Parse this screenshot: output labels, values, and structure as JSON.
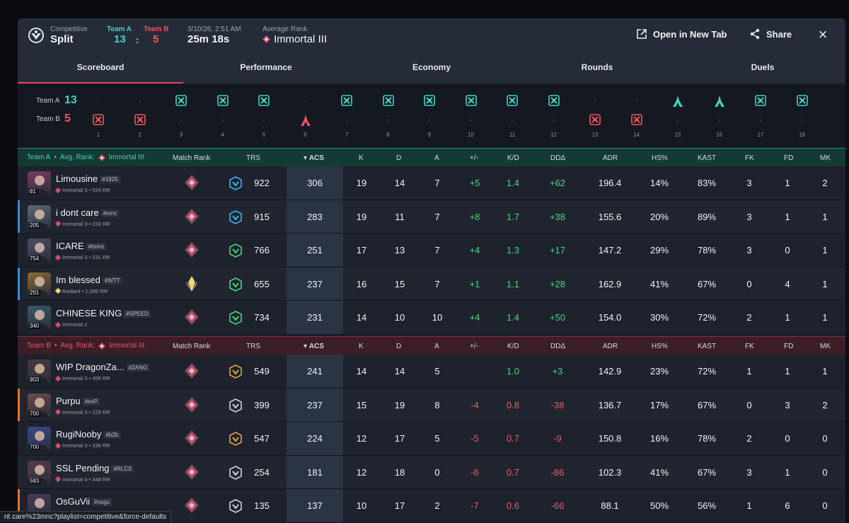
{
  "header": {
    "mode": "Competitive",
    "map": "Split",
    "team_a_label": "Team A",
    "team_b_label": "Team B",
    "score_a": "13",
    "score_sep": ":",
    "score_b": "5",
    "date": "3/10/26, 2:51 AM",
    "duration": "25m 18s",
    "avg_rank_label": "Average Rank",
    "avg_rank_value": "Immortal III",
    "open_new_tab": "Open in New Tab",
    "share": "Share"
  },
  "tabs": [
    "Scoreboard",
    "Performance",
    "Economy",
    "Rounds",
    "Duels"
  ],
  "timeline": {
    "team_a_label": "Team A",
    "team_b_label": "Team B",
    "team_a_score": "13",
    "team_b_score": "5",
    "rounds": [
      {
        "n": "1",
        "w": "B",
        "t": "elim"
      },
      {
        "n": "2",
        "w": "B",
        "t": "elim"
      },
      {
        "n": "3",
        "w": "A",
        "t": "elim"
      },
      {
        "n": "4",
        "w": "A",
        "t": "elim"
      },
      {
        "n": "5",
        "w": "A",
        "t": "elim"
      },
      {
        "n": "6",
        "w": "B",
        "t": "spike"
      },
      {
        "n": "7",
        "w": "A",
        "t": "elim"
      },
      {
        "n": "8",
        "w": "A",
        "t": "elim"
      },
      {
        "n": "9",
        "w": "A",
        "t": "elim"
      },
      {
        "n": "10",
        "w": "A",
        "t": "elim"
      },
      {
        "n": "11",
        "w": "A",
        "t": "elim"
      },
      {
        "n": "12",
        "w": "A",
        "t": "elim"
      },
      {
        "n": "13",
        "w": "B",
        "t": "elim"
      },
      {
        "n": "14",
        "w": "B",
        "t": "elim"
      },
      {
        "n": "15",
        "w": "A",
        "t": "spike"
      },
      {
        "n": "16",
        "w": "A",
        "t": "spike"
      },
      {
        "n": "17",
        "w": "A",
        "t": "elim"
      },
      {
        "n": "18",
        "w": "A",
        "t": "elim"
      }
    ]
  },
  "columns": {
    "match_rank": "Match Rank",
    "trs": "TRS",
    "acs": "ACS",
    "k": "K",
    "d": "D",
    "a": "A",
    "pm": "+/-",
    "kd": "K/D",
    "dda": "DDΔ",
    "adr": "ADR",
    "hs": "HS%",
    "kast": "KAST",
    "fk": "FK",
    "fd": "FD",
    "mk": "MK"
  },
  "team_a": {
    "label": "Team A",
    "avg_label": "Avg. Rank:",
    "avg_rank": "Immortal III",
    "players": [
      {
        "name": "Limousine",
        "tag": "#1925",
        "level": "61",
        "rank_line": "Immortal 3 • 524 RR",
        "trs": "922",
        "acs": "306",
        "k": "19",
        "d": "14",
        "a": "7",
        "pm": "+5",
        "kd": "1.4",
        "dda": "+62",
        "adr": "196.4",
        "hs": "14%",
        "kast": "83%",
        "fk": "3",
        "fd": "1",
        "mk": "2",
        "accent": ""
      },
      {
        "name": "i dont care",
        "tag": "#mnc",
        "level": "205",
        "rank_line": "Immortal 3 • 233 RR",
        "trs": "915",
        "acs": "283",
        "k": "19",
        "d": "11",
        "a": "7",
        "pm": "+8",
        "kd": "1.7",
        "dda": "+38",
        "adr": "155.6",
        "hs": "20%",
        "kast": "89%",
        "fk": "3",
        "fd": "1",
        "mk": "1",
        "accent": "#3a8fd9"
      },
      {
        "name": "ICARE",
        "tag": "#hrms",
        "level": "754",
        "rank_line": "Immortal 3 • 231 RR",
        "trs": "766",
        "acs": "251",
        "k": "17",
        "d": "13",
        "a": "7",
        "pm": "+4",
        "kd": "1.3",
        "dda": "+17",
        "adr": "147.2",
        "hs": "29%",
        "kast": "78%",
        "fk": "3",
        "fd": "0",
        "mk": "1",
        "accent": ""
      },
      {
        "name": "Im blessed",
        "tag": "#WTT",
        "level": "291",
        "rank_line": "Radiant • 1,000 RR",
        "trs": "655",
        "acs": "237",
        "k": "16",
        "d": "15",
        "a": "7",
        "pm": "+1",
        "kd": "1.1",
        "dda": "+28",
        "adr": "162.9",
        "hs": "41%",
        "kast": "67%",
        "fk": "0",
        "fd": "4",
        "mk": "1",
        "accent": "#3a8fd9"
      },
      {
        "name": "CHINESE KING",
        "tag": "#SPEED",
        "level": "340",
        "rank_line": "Immortal 2",
        "trs": "734",
        "acs": "231",
        "k": "14",
        "d": "10",
        "a": "10",
        "pm": "+4",
        "kd": "1.4",
        "dda": "+50",
        "adr": "154.0",
        "hs": "30%",
        "kast": "72%",
        "fk": "2",
        "fd": "1",
        "mk": "1",
        "accent": ""
      }
    ]
  },
  "team_b": {
    "label": "Team B",
    "avg_label": "Avg. Rank:",
    "avg_rank": "Immortal III",
    "players": [
      {
        "name": "WIP DragonZa...",
        "tag": "#ZANG",
        "level": "903",
        "rank_line": "Immortal 3 • 458 RR",
        "trs": "549",
        "acs": "241",
        "k": "14",
        "d": "14",
        "a": "5",
        "pm": "",
        "kd": "1.0",
        "dda": "+3",
        "adr": "142.9",
        "hs": "23%",
        "kast": "72%",
        "fk": "1",
        "fd": "1",
        "mk": "1",
        "accent": ""
      },
      {
        "name": "Purpu",
        "tag": "#exP",
        "level": "700",
        "rank_line": "Immortal 3 • 229 RR",
        "trs": "399",
        "acs": "237",
        "k": "15",
        "d": "19",
        "a": "8",
        "pm": "-4",
        "kd": "0.8",
        "dda": "-38",
        "adr": "136.7",
        "hs": "17%",
        "kast": "67%",
        "fk": "0",
        "fd": "3",
        "mk": "2",
        "accent": "#e8742a"
      },
      {
        "name": "RugiNooby",
        "tag": "#b2b",
        "level": "700",
        "rank_line": "Immortal 3 • 338 RR",
        "trs": "547",
        "acs": "224",
        "k": "12",
        "d": "17",
        "a": "5",
        "pm": "-5",
        "kd": "0.7",
        "dda": "-9",
        "adr": "150.8",
        "hs": "16%",
        "kast": "78%",
        "fk": "2",
        "fd": "0",
        "mk": "0",
        "accent": ""
      },
      {
        "name": "SSL Pending",
        "tag": "#RLCS",
        "level": "583",
        "rank_line": "Immortal 3 • 348 RR",
        "trs": "254",
        "acs": "181",
        "k": "12",
        "d": "18",
        "a": "0",
        "pm": "-6",
        "kd": "0.7",
        "dda": "-86",
        "adr": "102.3",
        "hs": "41%",
        "kast": "67%",
        "fk": "3",
        "fd": "1",
        "mk": "0",
        "accent": ""
      },
      {
        "name": "OsGuVii",
        "tag": "#osgu",
        "level": "",
        "rank_line": "",
        "trs": "135",
        "acs": "137",
        "k": "10",
        "d": "17",
        "a": "2",
        "pm": "-7",
        "kd": "0.6",
        "dda": "-66",
        "adr": "88.1",
        "hs": "50%",
        "kast": "56%",
        "fk": "1",
        "fd": "6",
        "mk": "0",
        "accent": "#e8742a"
      }
    ]
  },
  "status_url": "nt care%23mnc?playlist=competitive&force-defaults",
  "colors": {
    "team_a": "#3fd6c0",
    "team_b": "#f0555f",
    "positive": "#47d97a",
    "negative": "#ee5a63"
  }
}
